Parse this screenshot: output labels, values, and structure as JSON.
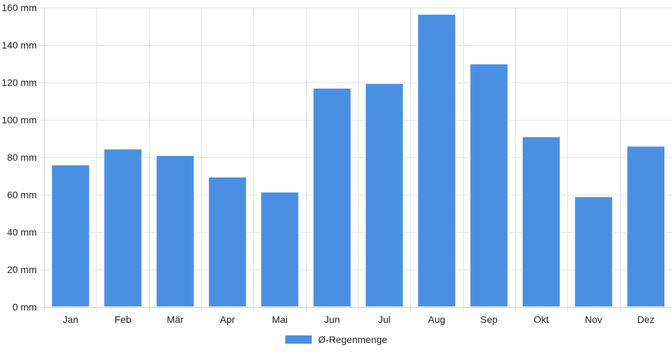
{
  "chart_data": {
    "type": "bar",
    "categories": [
      "Jan",
      "Feb",
      "Mär",
      "Apr",
      "Mai",
      "Jun",
      "Jul",
      "Aug",
      "Sep",
      "Okt",
      "Nov",
      "Dez"
    ],
    "series": [
      {
        "name": "Ø-Regenmenge",
        "color": "#4a90e2",
        "values": [
          76,
          84.5,
          81,
          69.5,
          61.5,
          117,
          119.5,
          156.5,
          130,
          91,
          59,
          86
        ]
      }
    ],
    "ylim": [
      0,
      160
    ],
    "y_ticks": [
      0,
      20,
      40,
      60,
      80,
      100,
      120,
      140,
      160
    ],
    "y_unit": "mm",
    "grid": true,
    "legend_position": "bottom"
  }
}
